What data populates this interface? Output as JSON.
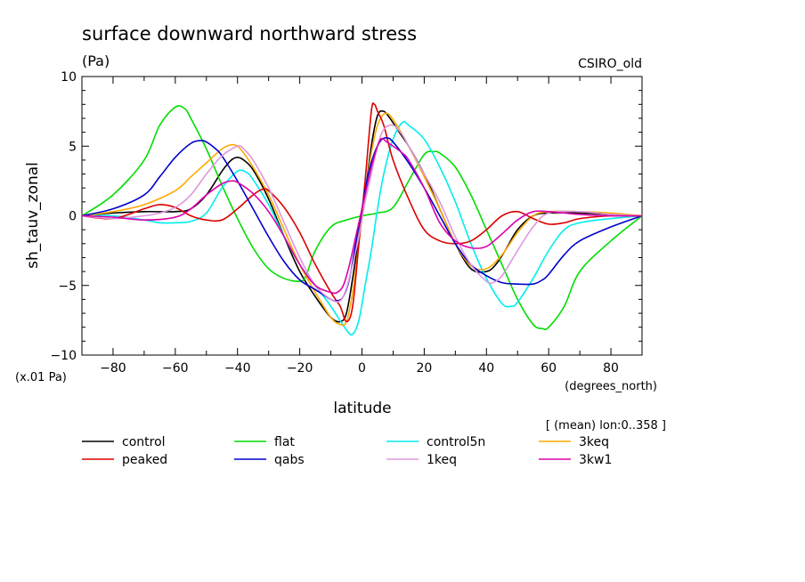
{
  "header": {
    "title": "surface downward northward stress",
    "units": "(Pa)",
    "source": "CSIRO_old",
    "scale_note": "(x.01 Pa)",
    "x_units": "(degrees_north)",
    "region_note": "[ (mean) lon:0..358 ]"
  },
  "chart_data": {
    "type": "line",
    "title": "surface downward northward stress",
    "xlabel": "latitude",
    "ylabel": "sh_tauv_zonal",
    "xlim": [
      -90,
      90
    ],
    "ylim": [
      -10,
      10
    ],
    "xticks": [
      -80,
      -60,
      -40,
      -20,
      0,
      20,
      40,
      60,
      80
    ],
    "yticks": [
      -10,
      -5,
      0,
      5,
      10
    ],
    "xtick_labels": [
      "−80",
      "−60",
      "−40",
      "−20",
      "0",
      "20",
      "40",
      "60",
      "80"
    ],
    "ytick_labels": [
      "−10",
      "−5",
      "0",
      "5",
      "10"
    ],
    "grid": false,
    "legend_position": "bottom",
    "series": [
      {
        "name": "control",
        "color": "#000000",
        "x": [
          -90,
          -80,
          -70,
          -60,
          -55,
          -50,
          -45,
          -42,
          -40,
          -38,
          -35,
          -30,
          -25,
          -20,
          -15,
          -10,
          -7,
          -5,
          -3,
          -1,
          1,
          3,
          5,
          7,
          9,
          12,
          15,
          20,
          25,
          30,
          35,
          40,
          43,
          46,
          50,
          55,
          60,
          70,
          80,
          90
        ],
        "y": [
          0,
          0.2,
          0.3,
          0.3,
          0.5,
          1.5,
          3.2,
          4,
          4.2,
          4,
          3.3,
          1.2,
          -1.5,
          -4,
          -5.8,
          -7.3,
          -7.6,
          -7,
          -4.5,
          -1.5,
          1.5,
          5,
          7.2,
          7.5,
          7,
          6,
          5,
          3,
          0.5,
          -2,
          -3.8,
          -4,
          -3.5,
          -2.5,
          -1,
          0,
          0.2,
          0.2,
          0.1,
          0
        ]
      },
      {
        "name": "flat",
        "color": "#00dd00",
        "x": [
          -90,
          -80,
          -70,
          -65,
          -60,
          -57,
          -55,
          -50,
          -45,
          -40,
          -35,
          -30,
          -25,
          -20,
          -18,
          -15,
          -10,
          -5,
          0,
          5,
          10,
          15,
          20,
          23,
          25,
          30,
          35,
          40,
          45,
          50,
          55,
          58,
          60,
          65,
          70,
          80,
          90
        ],
        "y": [
          0,
          1.5,
          4,
          6.5,
          7.8,
          7.7,
          7,
          4.8,
          2.2,
          -0.2,
          -2.3,
          -3.8,
          -4.5,
          -4.7,
          -4.3,
          -2.5,
          -0.8,
          -0.3,
          0,
          0.2,
          0.6,
          2.5,
          4.4,
          4.6,
          4.5,
          3.5,
          1.5,
          -1,
          -3.5,
          -6,
          -7.8,
          -8.1,
          -8,
          -6.5,
          -4,
          -1.8,
          0
        ]
      },
      {
        "name": "control5n",
        "color": "#00eeee",
        "x": [
          -90,
          -80,
          -70,
          -65,
          -60,
          -55,
          -50,
          -45,
          -40,
          -37,
          -35,
          -30,
          -25,
          -20,
          -15,
          -10,
          -5,
          -3,
          -1,
          1,
          3,
          5,
          7,
          10,
          13,
          15,
          20,
          25,
          30,
          35,
          40,
          45,
          48,
          50,
          55,
          60,
          65,
          70,
          80,
          90
        ],
        "y": [
          0,
          0,
          -0.3,
          -0.5,
          -0.5,
          -0.4,
          0.2,
          2,
          3.2,
          3.1,
          2.6,
          0.8,
          -1.5,
          -3.5,
          -5,
          -6.5,
          -8.2,
          -8.5,
          -7.5,
          -5,
          -2.5,
          0.5,
          3,
          5.5,
          6.7,
          6.5,
          5.5,
          3.5,
          1,
          -2,
          -4.5,
          -6.3,
          -6.5,
          -6.2,
          -4.5,
          -2.5,
          -1,
          -0.5,
          -0.2,
          0
        ]
      },
      {
        "name": "3keq",
        "color": "#ffaa00",
        "x": [
          -90,
          -80,
          -70,
          -60,
          -55,
          -50,
          -45,
          -42,
          -40,
          -38,
          -35,
          -30,
          -25,
          -20,
          -15,
          -10,
          -7,
          -5,
          -3,
          -1,
          1,
          3,
          5,
          7,
          9,
          12,
          15,
          20,
          25,
          30,
          35,
          40,
          45,
          50,
          55,
          60,
          70,
          80,
          90
        ],
        "y": [
          0,
          0.3,
          0.8,
          1.8,
          2.8,
          3.8,
          4.8,
          5.1,
          5,
          4.5,
          3.5,
          1.5,
          -1,
          -3.5,
          -5.5,
          -7.3,
          -7.8,
          -7.6,
          -5.5,
          -2,
          1.5,
          4.5,
          6.5,
          7.3,
          7.2,
          6.2,
          5,
          2.8,
          0.5,
          -2,
          -3.6,
          -3.8,
          -2.8,
          -1.2,
          0,
          0.3,
          0.3,
          0.2,
          0
        ]
      },
      {
        "name": "peaked",
        "color": "#dd0000",
        "x": [
          -90,
          -80,
          -70,
          -65,
          -60,
          -55,
          -50,
          -45,
          -40,
          -35,
          -32,
          -30,
          -25,
          -20,
          -15,
          -10,
          -7,
          -5,
          -3,
          -1,
          1,
          3,
          4,
          5,
          7,
          10,
          15,
          20,
          25,
          30,
          35,
          40,
          45,
          50,
          55,
          60,
          65,
          70,
          80,
          90
        ],
        "y": [
          0,
          -0.2,
          0.5,
          0.8,
          0.6,
          0,
          -0.3,
          -0.3,
          0.5,
          1.5,
          1.9,
          1.8,
          0.6,
          -1.2,
          -3.5,
          -5.5,
          -6.5,
          -7.6,
          -6.5,
          -2,
          2.5,
          7.5,
          8,
          7.5,
          6.5,
          4,
          1.2,
          -1,
          -1.8,
          -2,
          -1.8,
          -1,
          0,
          0.3,
          -0.2,
          -0.6,
          -0.5,
          -0.2,
          0,
          0
        ]
      },
      {
        "name": "qabs",
        "color": "#0000cc",
        "x": [
          -90,
          -80,
          -70,
          -65,
          -60,
          -55,
          -52,
          -50,
          -47,
          -45,
          -40,
          -35,
          -30,
          -25,
          -20,
          -15,
          -10,
          -8,
          -6,
          -4,
          -2,
          0,
          2,
          4,
          6,
          8,
          10,
          15,
          20,
          25,
          30,
          35,
          40,
          45,
          50,
          55,
          58,
          60,
          65,
          70,
          80,
          90
        ],
        "y": [
          0,
          0.5,
          1.5,
          2.8,
          4.2,
          5.2,
          5.4,
          5.3,
          4.8,
          4.3,
          2.5,
          0.5,
          -1.5,
          -3.3,
          -4.6,
          -5.3,
          -6,
          -6.1,
          -5.8,
          -4.5,
          -2,
          0.5,
          3,
          4.5,
          5.4,
          5.6,
          5.3,
          3.8,
          2,
          0,
          -2,
          -3.5,
          -4.3,
          -4.8,
          -4.9,
          -4.9,
          -4.6,
          -4.2,
          -2.8,
          -1.8,
          -0.8,
          0
        ]
      },
      {
        "name": "1keq",
        "color": "#dd99dd",
        "x": [
          -90,
          -80,
          -70,
          -65,
          -60,
          -55,
          -50,
          -45,
          -40,
          -38,
          -35,
          -30,
          -25,
          -20,
          -15,
          -10,
          -7,
          -5,
          -3,
          -1,
          1,
          3,
          5,
          7,
          10,
          13,
          15,
          20,
          25,
          30,
          35,
          40,
          42,
          45,
          50,
          55,
          60,
          70,
          80,
          90
        ],
        "y": [
          0,
          -0.2,
          0,
          0.2,
          0.6,
          1.5,
          3,
          4.3,
          5,
          4.8,
          4,
          2,
          -0.5,
          -3,
          -5,
          -6,
          -6.1,
          -5.2,
          -3.5,
          -1.5,
          1,
          3,
          5,
          6.2,
          6.5,
          5.8,
          5,
          3,
          1,
          -1.5,
          -3.5,
          -4.7,
          -4.8,
          -4.3,
          -2.5,
          -0.8,
          0.2,
          0.3,
          0.1,
          0
        ]
      },
      {
        "name": "3kw1",
        "color": "#dd00aa",
        "x": [
          -90,
          -80,
          -70,
          -60,
          -55,
          -50,
          -45,
          -42,
          -40,
          -35,
          -30,
          -25,
          -20,
          -15,
          -10,
          -8,
          -6,
          -4,
          -2,
          0,
          2,
          4,
          6,
          8,
          10,
          13,
          15,
          20,
          25,
          30,
          35,
          40,
          45,
          50,
          55,
          60,
          65,
          70,
          80,
          90
        ],
        "y": [
          0,
          -0.1,
          -0.3,
          -0.1,
          0.5,
          1.5,
          2.3,
          2.5,
          2.4,
          1.6,
          0.3,
          -1.5,
          -3.5,
          -5,
          -5.5,
          -5.5,
          -5,
          -3.5,
          -1.5,
          0.5,
          2.5,
          4.3,
          5.5,
          5.3,
          5,
          4.5,
          4,
          2,
          -0.5,
          -1.8,
          -2.3,
          -2.2,
          -1.3,
          -0.3,
          0.3,
          0.3,
          0.2,
          0.1,
          0,
          0
        ]
      }
    ]
  }
}
